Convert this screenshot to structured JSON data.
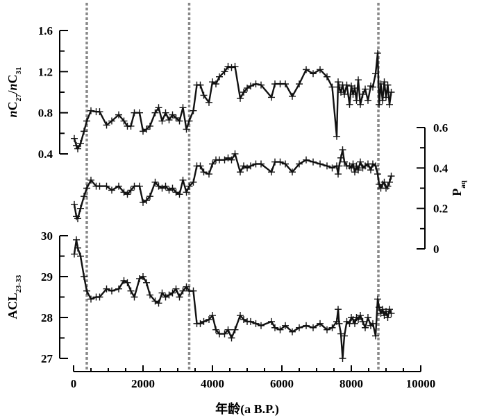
{
  "chart_data": {
    "type": "line",
    "xlabel": "年龄(a B.P.)",
    "xlim": [
      0,
      10000
    ],
    "x_ticks": [
      "0",
      "2000",
      "4000",
      "6000",
      "8000",
      "10000"
    ],
    "reference_lines_x": [
      380,
      3330,
      8780
    ],
    "panels": [
      {
        "name": "top",
        "ylabel_html": "<tspan font-style='italic'>n</tspan>C<tspan baseline-shift='sub' font-size='11'>27</tspan>/<tspan font-style='italic'>n</tspan>C<tspan baseline-shift='sub' font-size='11'>31</tspan>",
        "ylim": [
          0.4,
          1.6
        ],
        "y_ticks": [
          "0.4",
          "0.8",
          "1.2",
          "1.6"
        ],
        "axis_side": "left",
        "x": [
          20,
          80,
          120,
          200,
          300,
          380,
          500,
          650,
          750,
          950,
          1100,
          1300,
          1450,
          1550,
          1650,
          1750,
          1900,
          2000,
          2100,
          2200,
          2350,
          2450,
          2550,
          2650,
          2750,
          2850,
          2950,
          3050,
          3150,
          3250,
          3330,
          3450,
          3550,
          3650,
          3750,
          3900,
          4000,
          4100,
          4200,
          4350,
          4450,
          4550,
          4650,
          4800,
          4900,
          5000,
          5100,
          5250,
          5400,
          5700,
          5800,
          5950,
          6100,
          6300,
          6500,
          6700,
          6900,
          7100,
          7300,
          7450,
          7580,
          7620,
          7650,
          7700,
          7750,
          7800,
          7870,
          7950,
          8000,
          8050,
          8100,
          8150,
          8200,
          8260,
          8330,
          8400,
          8480,
          8560,
          8620,
          8700,
          8760,
          8800,
          8850,
          8900,
          8950,
          9000,
          9050,
          9100,
          9150
        ],
        "values": [
          0.55,
          0.48,
          0.45,
          0.5,
          0.62,
          0.72,
          0.82,
          0.81,
          0.81,
          0.68,
          0.72,
          0.78,
          0.72,
          0.67,
          0.67,
          0.8,
          0.8,
          0.62,
          0.64,
          0.67,
          0.8,
          0.85,
          0.72,
          0.8,
          0.73,
          0.78,
          0.75,
          0.72,
          0.85,
          0.64,
          0.72,
          0.82,
          1.07,
          1.07,
          0.97,
          0.9,
          1.1,
          1.08,
          1.15,
          1.2,
          1.25,
          1.24,
          1.25,
          0.94,
          1.0,
          1.04,
          1.06,
          1.08,
          1.07,
          0.95,
          1.08,
          1.08,
          1.08,
          0.96,
          1.08,
          1.22,
          1.18,
          1.22,
          1.15,
          1.05,
          0.57,
          1.1,
          1.05,
          1.0,
          1.07,
          0.98,
          1.07,
          0.88,
          1.06,
          0.98,
          1.04,
          0.92,
          1.12,
          0.88,
          0.98,
          1.03,
          0.92,
          1.06,
          1.05,
          1.18,
          1.38,
          0.88,
          1.08,
          0.92,
          1.1,
          0.95,
          1.07,
          0.88,
          1.0
        ]
      },
      {
        "name": "middle",
        "ylabel_html": "P<tspan baseline-shift='sub' font-size='11'>aq</tspan>",
        "ylim": [
          0,
          0.6
        ],
        "y_ticks": [
          "0",
          "0.2",
          "0.4",
          "0.6"
        ],
        "axis_side": "right",
        "x": [
          20,
          80,
          120,
          200,
          300,
          380,
          500,
          650,
          750,
          950,
          1100,
          1300,
          1450,
          1550,
          1650,
          1750,
          1900,
          2000,
          2100,
          2200,
          2350,
          2450,
          2550,
          2650,
          2750,
          2850,
          2950,
          3050,
          3150,
          3250,
          3330,
          3450,
          3550,
          3650,
          3750,
          3900,
          4000,
          4100,
          4200,
          4350,
          4450,
          4550,
          4650,
          4800,
          4900,
          5000,
          5100,
          5250,
          5400,
          5700,
          5800,
          5950,
          6100,
          6300,
          6500,
          6700,
          6900,
          7100,
          7300,
          7450,
          7580,
          7620,
          7650,
          7700,
          7750,
          7800,
          7870,
          7950,
          8000,
          8050,
          8100,
          8150,
          8200,
          8260,
          8330,
          8400,
          8480,
          8560,
          8620,
          8700,
          8760,
          8800,
          8850,
          8900,
          8950,
          9000,
          9050,
          9100,
          9150
        ],
        "values": [
          0.22,
          0.16,
          0.15,
          0.2,
          0.26,
          0.3,
          0.34,
          0.31,
          0.31,
          0.31,
          0.29,
          0.31,
          0.28,
          0.27,
          0.29,
          0.31,
          0.31,
          0.23,
          0.24,
          0.26,
          0.33,
          0.31,
          0.3,
          0.31,
          0.29,
          0.3,
          0.28,
          0.27,
          0.34,
          0.28,
          0.31,
          0.33,
          0.41,
          0.41,
          0.38,
          0.37,
          0.42,
          0.44,
          0.44,
          0.44,
          0.45,
          0.44,
          0.47,
          0.38,
          0.41,
          0.4,
          0.41,
          0.42,
          0.42,
          0.38,
          0.43,
          0.43,
          0.42,
          0.38,
          0.42,
          0.44,
          0.43,
          0.42,
          0.41,
          0.4,
          0.41,
          0.37,
          0.41,
          0.45,
          0.49,
          0.43,
          0.41,
          0.41,
          0.4,
          0.42,
          0.38,
          0.41,
          0.39,
          0.43,
          0.4,
          0.41,
          0.42,
          0.39,
          0.42,
          0.41,
          0.37,
          0.32,
          0.3,
          0.32,
          0.33,
          0.3,
          0.31,
          0.33,
          0.36
        ]
      },
      {
        "name": "bottom",
        "ylabel_html": "ACL<tspan baseline-shift='sub' font-size='11'>23-33</tspan>",
        "ylim": [
          27,
          30
        ],
        "y_ticks": [
          "27",
          "28",
          "29",
          "30"
        ],
        "axis_side": "left",
        "x": [
          20,
          80,
          120,
          200,
          300,
          380,
          500,
          650,
          750,
          950,
          1100,
          1300,
          1450,
          1550,
          1650,
          1750,
          1900,
          2000,
          2100,
          2200,
          2350,
          2450,
          2550,
          2650,
          2750,
          2850,
          2950,
          3050,
          3150,
          3250,
          3330,
          3450,
          3550,
          3650,
          3750,
          3900,
          4000,
          4100,
          4200,
          4350,
          4450,
          4550,
          4650,
          4800,
          4900,
          5000,
          5100,
          5250,
          5400,
          5700,
          5800,
          5950,
          6100,
          6300,
          6500,
          6700,
          6900,
          7100,
          7300,
          7450,
          7580,
          7620,
          7650,
          7700,
          7750,
          7800,
          7870,
          7950,
          8000,
          8050,
          8100,
          8150,
          8200,
          8260,
          8330,
          8400,
          8480,
          8560,
          8620,
          8700,
          8760,
          8800,
          8850,
          8900,
          8950,
          9000,
          9050,
          9100,
          9150
        ],
        "values": [
          29.55,
          29.9,
          29.7,
          29.5,
          29.0,
          28.65,
          28.45,
          28.5,
          28.5,
          28.7,
          28.65,
          28.7,
          28.9,
          28.85,
          28.65,
          28.5,
          28.95,
          29.0,
          28.85,
          28.55,
          28.4,
          28.35,
          28.6,
          28.5,
          28.55,
          28.6,
          28.7,
          28.5,
          28.65,
          28.75,
          28.65,
          28.65,
          27.85,
          27.85,
          27.9,
          27.95,
          28.05,
          27.7,
          27.6,
          27.6,
          27.7,
          27.5,
          27.7,
          28.05,
          27.95,
          27.9,
          27.9,
          27.85,
          27.8,
          27.9,
          27.75,
          27.7,
          27.8,
          27.65,
          27.75,
          27.8,
          27.75,
          27.85,
          27.7,
          27.75,
          27.9,
          28.2,
          27.85,
          27.6,
          27.0,
          27.55,
          27.9,
          27.85,
          28.0,
          27.95,
          27.85,
          28.0,
          27.95,
          28.05,
          27.9,
          27.75,
          28.0,
          27.8,
          27.85,
          27.55,
          28.45,
          28.25,
          28.1,
          28.2,
          28.05,
          28.15,
          28.0,
          28.2,
          28.1
        ]
      }
    ]
  }
}
